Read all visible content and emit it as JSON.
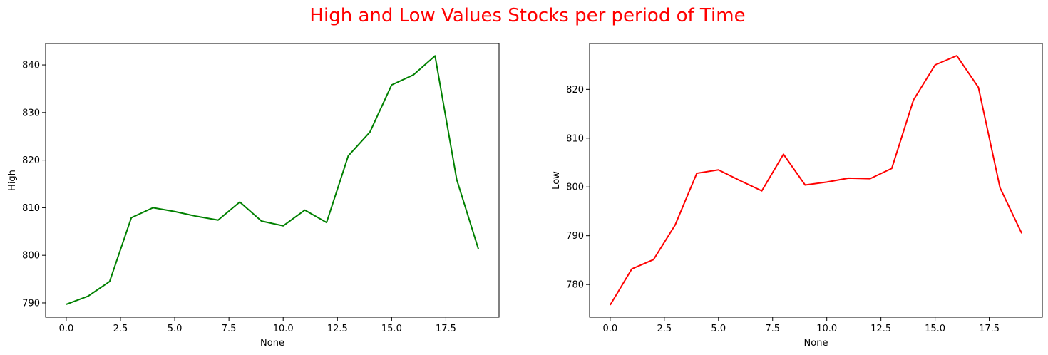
{
  "suptitle": "High and Low Values Stocks per period of Time",
  "chart_data": [
    {
      "type": "line",
      "xlabel": "None",
      "ylabel": "High",
      "color": "#008000",
      "xlim": [
        -0.95,
        19.95
      ],
      "ylim": [
        787.0,
        844.5
      ],
      "xticks": [
        0,
        2.5,
        5,
        7.5,
        10,
        12.5,
        15,
        17.5
      ],
      "xtick_labels": [
        "0.0",
        "2.5",
        "5.0",
        "7.5",
        "10.0",
        "12.5",
        "15.0",
        "17.5"
      ],
      "yticks": [
        790,
        800,
        810,
        820,
        830,
        840
      ],
      "ytick_labels": [
        "790",
        "800",
        "810",
        "820",
        "830",
        "840"
      ],
      "x": [
        0,
        1,
        2,
        3,
        4,
        5,
        6,
        7,
        8,
        9,
        10,
        11,
        12,
        13,
        14,
        15,
        16,
        17,
        18,
        19
      ],
      "y": [
        789.7,
        791.4,
        794.5,
        807.9,
        810.0,
        809.2,
        808.2,
        807.4,
        811.2,
        807.2,
        806.2,
        809.5,
        806.9,
        820.9,
        825.9,
        835.8,
        837.9,
        841.9,
        815.9,
        801.3
      ],
      "grid": false,
      "legend": false
    },
    {
      "type": "line",
      "xlabel": "None",
      "ylabel": "Low",
      "color": "#ff0000",
      "xlim": [
        -0.95,
        19.95
      ],
      "ylim": [
        773.3,
        829.4
      ],
      "xticks": [
        0,
        2.5,
        5,
        7.5,
        10,
        12.5,
        15,
        17.5
      ],
      "xtick_labels": [
        "0.0",
        "2.5",
        "5.0",
        "7.5",
        "10.0",
        "12.5",
        "15.0",
        "17.5"
      ],
      "yticks": [
        780,
        790,
        800,
        810,
        820
      ],
      "ytick_labels": [
        "780",
        "790",
        "800",
        "810",
        "820"
      ],
      "x": [
        0,
        1,
        2,
        3,
        4,
        5,
        6,
        7,
        8,
        9,
        10,
        11,
        12,
        13,
        14,
        15,
        16,
        17,
        18,
        19
      ],
      "y": [
        775.8,
        783.2,
        785.1,
        792.2,
        802.8,
        803.5,
        801.3,
        799.2,
        806.7,
        800.4,
        801.0,
        801.8,
        801.7,
        803.8,
        817.8,
        825.0,
        826.9,
        820.4,
        799.8,
        790.5
      ],
      "grid": false,
      "legend": false
    }
  ]
}
